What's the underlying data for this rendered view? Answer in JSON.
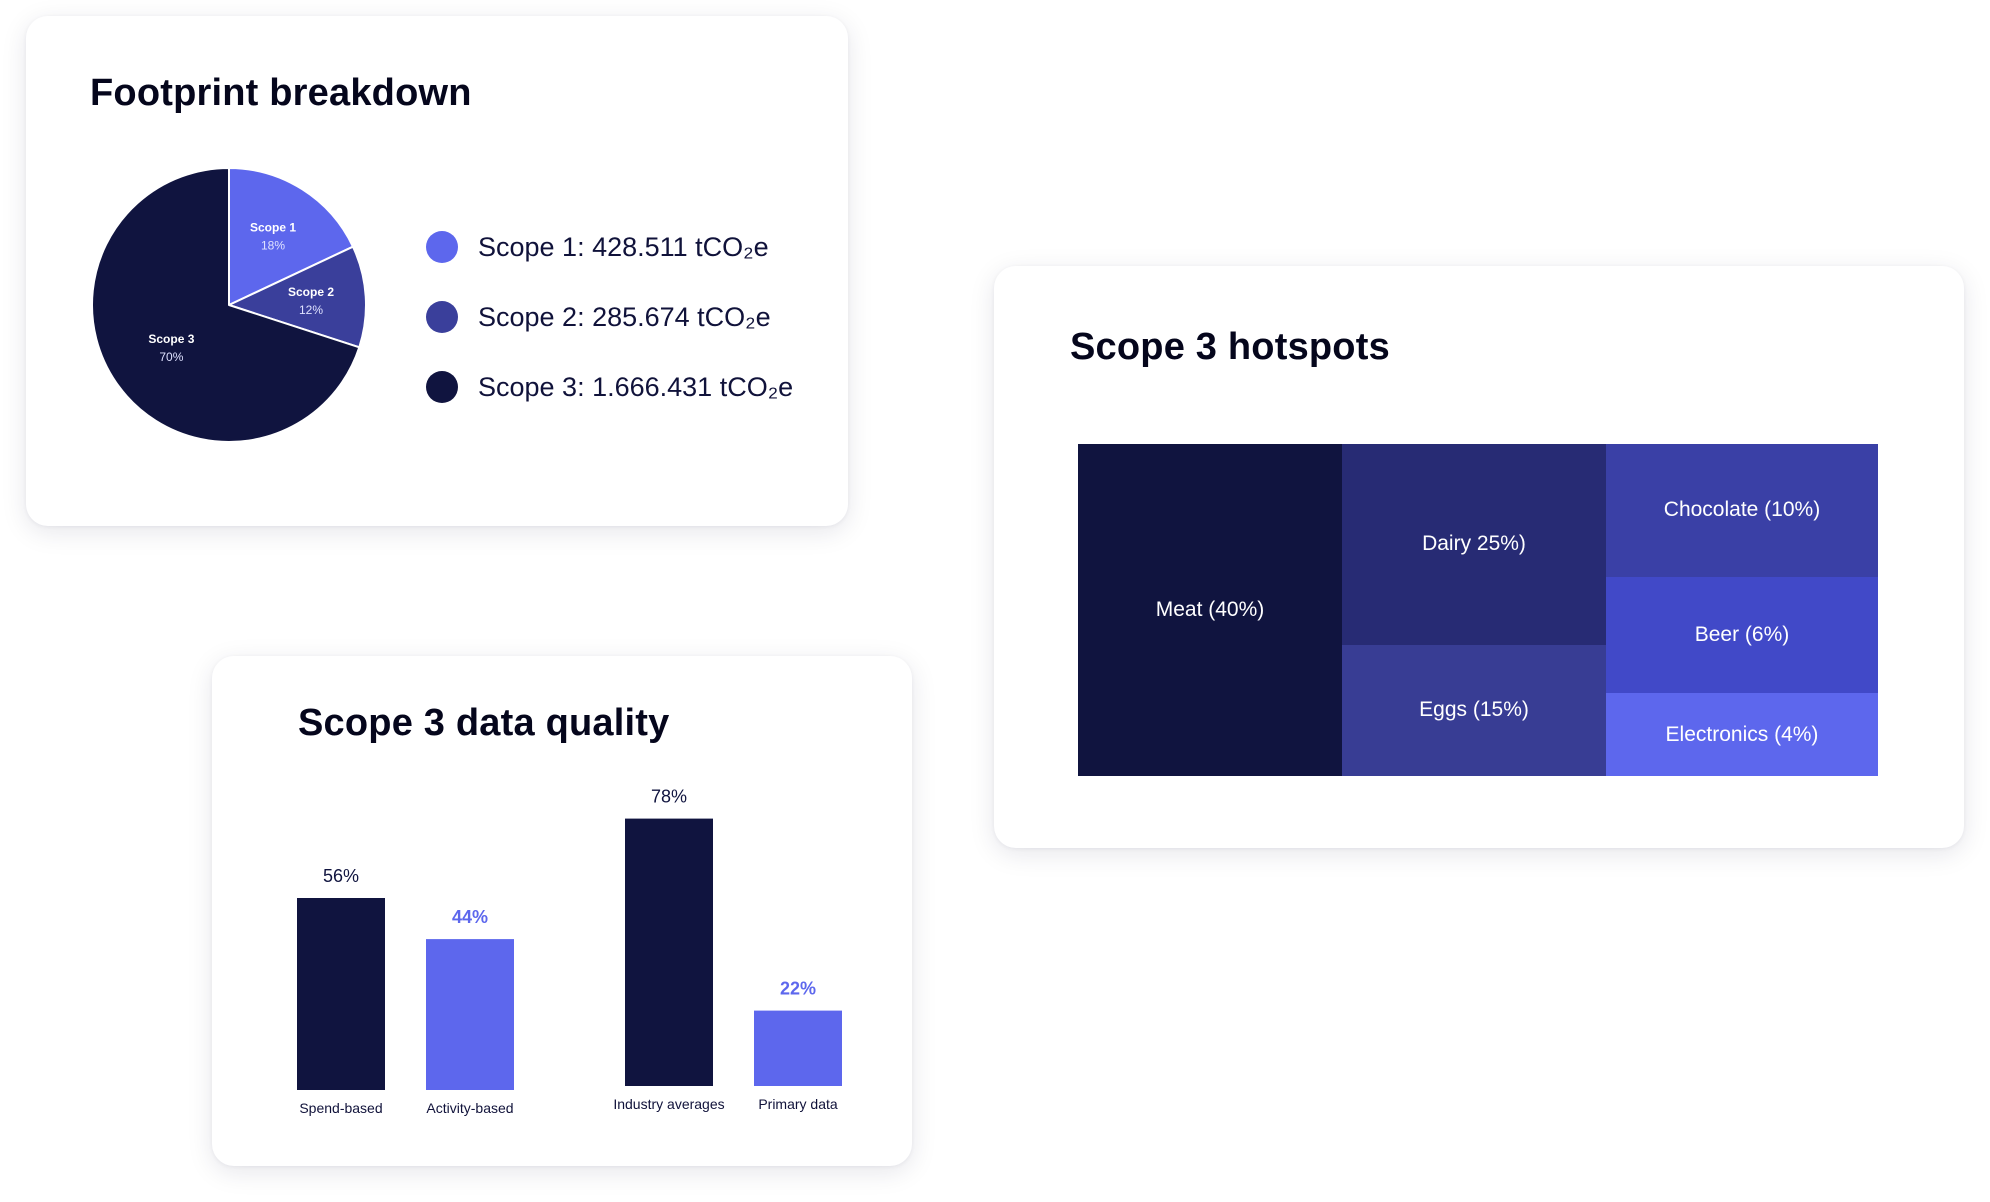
{
  "footprint": {
    "title": "Footprint breakdown",
    "chart_data": {
      "type": "pie",
      "title": "Footprint breakdown",
      "slices": [
        {
          "name": "Scope 1",
          "value": 18,
          "value_label": "18%",
          "color": "#5d67ed"
        },
        {
          "name": "Scope 2",
          "value": 12,
          "value_label": "12%",
          "color": "#3a3f9b"
        },
        {
          "name": "Scope 3",
          "value": 70,
          "value_label": "70%",
          "color": "#10143f"
        }
      ]
    },
    "legend": [
      {
        "label": "Scope 1: 428.511 tCO₂e",
        "color": "#5d67ed"
      },
      {
        "label": "Scope 2: 285.674 tCO₂e",
        "color": "#3a3f9b"
      },
      {
        "label": "Scope 3: 1.666.431 tCO₂e",
        "color": "#10143f"
      }
    ]
  },
  "quality": {
    "title": "Scope 3 data quality",
    "chart_data": {
      "type": "bar",
      "title": "Scope 3 data quality",
      "categories": [
        "Spend-based",
        "Activity-based",
        "Industry averages",
        "Primary data"
      ],
      "values": [
        56,
        44,
        78,
        22
      ],
      "value_labels": [
        "56%",
        "44%",
        "78%",
        "22%"
      ],
      "colors": [
        "#10143f",
        "#5d67ed",
        "#10143f",
        "#5d67ed"
      ],
      "label_colors": [
        "#10143f",
        "#5d67ed",
        "#10143f",
        "#5d67ed"
      ],
      "label_bold": [
        false,
        true,
        false,
        true
      ],
      "ylim": [
        0,
        100
      ],
      "grid": false
    }
  },
  "hotspots": {
    "title": "Scope 3 hotspots",
    "chart_data": {
      "type": "treemap",
      "title": "Scope 3 hotspots",
      "items": [
        {
          "name": "Meat",
          "value": 40,
          "label": "Meat  (40%)",
          "color": "#10143f"
        },
        {
          "name": "Dairy",
          "value": 25,
          "label": "Dairy 25%)",
          "color": "#272b74"
        },
        {
          "name": "Eggs",
          "value": 15,
          "label": "Eggs (15%)",
          "color": "#383d94"
        },
        {
          "name": "Chocolate",
          "value": 10,
          "label": "Chocolate  (10%)",
          "color": "#3a40a6"
        },
        {
          "name": "Beer",
          "value": 6,
          "label": "Beer (6%)",
          "color": "#4149c8"
        },
        {
          "name": "Electronics",
          "value": 4,
          "label": "Electronics (4%)",
          "color": "#5d67ed"
        }
      ]
    }
  }
}
